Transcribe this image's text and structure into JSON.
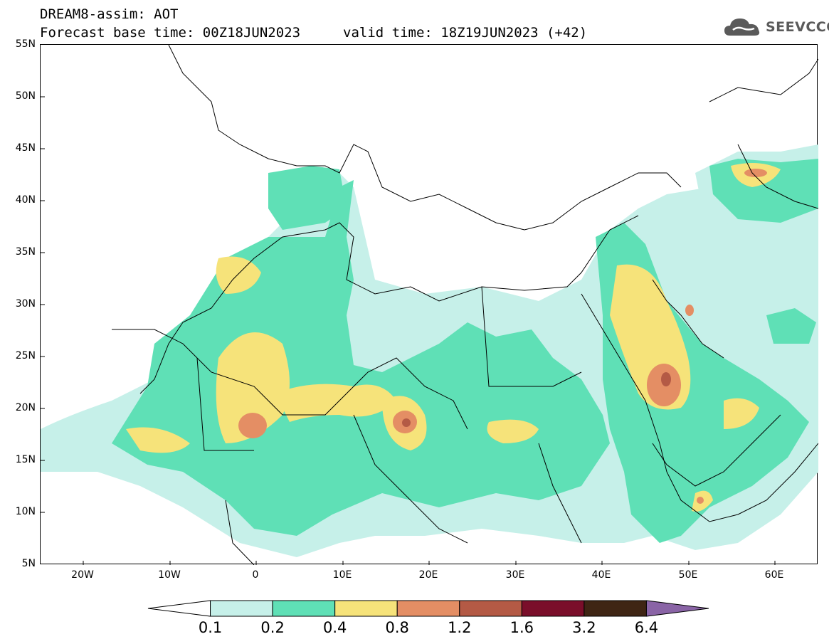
{
  "title": {
    "model_line": "DREAM8-assim: AOT",
    "base_line": "Forecast base time: 00Z18JUN2023",
    "valid_line": "valid time: 18Z19JUN2023 (+42)"
  },
  "logo": {
    "text": "SEEVCCC",
    "icon": "cloud-icon"
  },
  "map": {
    "variable": "Aerosol Optical Thickness",
    "lat_labels": [
      "55N",
      "50N",
      "45N",
      "40N",
      "35N",
      "30N",
      "25N",
      "20N",
      "15N",
      "10N",
      "5N"
    ],
    "lon_labels": [
      "20W",
      "10W",
      "0",
      "10E",
      "20E",
      "30E",
      "40E",
      "50E",
      "60E"
    ],
    "extent": {
      "lon_min": -25,
      "lon_max": 65,
      "lat_min": 5,
      "lat_max": 55
    }
  },
  "legend": {
    "levels": [
      "0.1",
      "0.2",
      "0.4",
      "0.8",
      "1.2",
      "1.6",
      "3.2",
      "6.4"
    ],
    "colors": [
      "#ffffff",
      "#c6f0e9",
      "#5fe0b6",
      "#f6e37a",
      "#e48e64",
      "#b45a45",
      "#7a0e2a",
      "#3f2514",
      "#8a64a6"
    ]
  }
}
